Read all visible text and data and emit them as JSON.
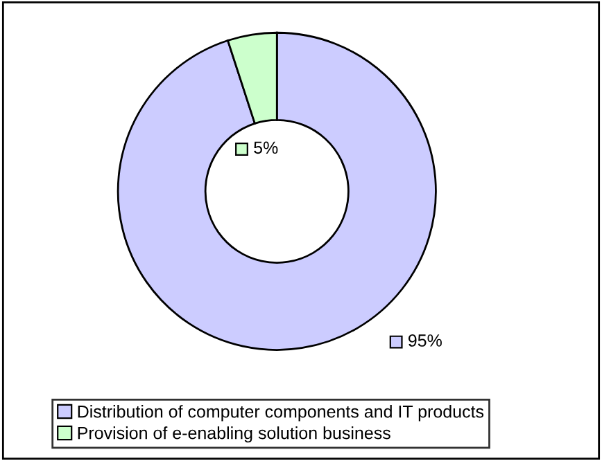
{
  "chart_data": {
    "type": "donut",
    "categories": [
      "Distribution of computer components and IT products",
      "Provision of e-enabling solution business"
    ],
    "values": [
      95,
      5
    ],
    "colors": [
      "#ccccff",
      "#ccffcc"
    ],
    "value_labels": [
      "95%",
      "5%"
    ],
    "legend": "bottom"
  }
}
